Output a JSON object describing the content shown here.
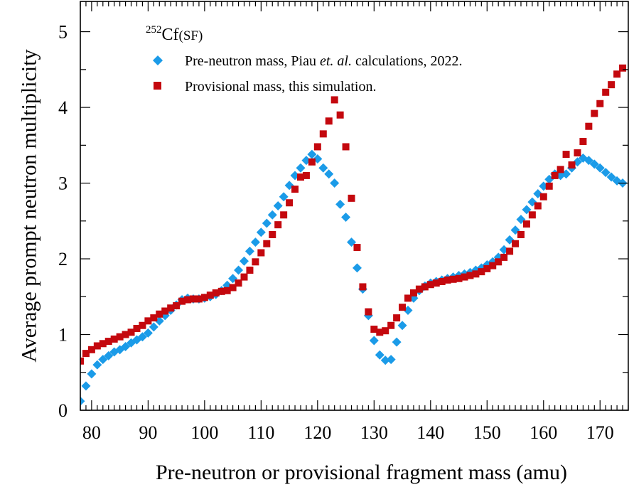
{
  "chart_data": {
    "type": "scatter",
    "title": "",
    "xlabel": "Pre-neutron or provisional fragment mass (amu)",
    "ylabel": "Average prompt neutron multiplicity",
    "xlim": [
      78,
      175
    ],
    "ylim": [
      0,
      5.4
    ],
    "xticks": [
      "80",
      "90",
      "100",
      "110",
      "120",
      "130",
      "140",
      "150",
      "160",
      "170"
    ],
    "yticks": [
      "0",
      "1",
      "2",
      "3",
      "4",
      "5"
    ],
    "legend": {
      "title_sup": "252",
      "title_main": "Cf",
      "title_sub": "(SF)",
      "placement": "top-left",
      "entries": [
        {
          "prefix": "Pre-neutron mass, Piau ",
          "italic": "et. al.",
          "suffix": " calculations, 2022."
        },
        {
          "prefix": "Provisional mass, this simulation.",
          "italic": "",
          "suffix": ""
        }
      ]
    },
    "series": [
      {
        "name": "Pre-neutron mass, Piau et. al. calculations, 2022.",
        "marker": "diamond",
        "color": "#1b9be8",
        "x": [
          78,
          79,
          80,
          81,
          82,
          83,
          84,
          85,
          86,
          87,
          88,
          89,
          90,
          91,
          92,
          93,
          94,
          95,
          96,
          97,
          98,
          99,
          100,
          101,
          102,
          103,
          104,
          105,
          106,
          107,
          108,
          109,
          110,
          111,
          112,
          113,
          114,
          115,
          116,
          117,
          118,
          119,
          120,
          121,
          122,
          123,
          124,
          125,
          126,
          127,
          128,
          129,
          130,
          131,
          132,
          133,
          134,
          135,
          136,
          137,
          138,
          139,
          140,
          141,
          142,
          143,
          144,
          145,
          146,
          147,
          148,
          149,
          150,
          151,
          152,
          153,
          154,
          155,
          156,
          157,
          158,
          159,
          160,
          161,
          162,
          163,
          164,
          165,
          166,
          167,
          168,
          169,
          170,
          171,
          172,
          173,
          174
        ],
        "y": [
          0.12,
          0.32,
          0.48,
          0.6,
          0.67,
          0.72,
          0.77,
          0.8,
          0.84,
          0.89,
          0.93,
          0.97,
          1.02,
          1.1,
          1.18,
          1.25,
          1.32,
          1.39,
          1.46,
          1.48,
          1.47,
          1.47,
          1.48,
          1.5,
          1.53,
          1.58,
          1.65,
          1.74,
          1.85,
          1.97,
          2.1,
          2.22,
          2.35,
          2.47,
          2.58,
          2.7,
          2.82,
          2.97,
          3.1,
          3.2,
          3.3,
          3.38,
          3.32,
          3.2,
          3.12,
          3.0,
          2.72,
          2.55,
          2.22,
          1.88,
          1.6,
          1.25,
          0.92,
          0.73,
          0.66,
          0.67,
          0.9,
          1.12,
          1.32,
          1.48,
          1.58,
          1.64,
          1.68,
          1.7,
          1.72,
          1.74,
          1.76,
          1.78,
          1.8,
          1.82,
          1.85,
          1.88,
          1.92,
          1.96,
          2.02,
          2.12,
          2.25,
          2.38,
          2.52,
          2.65,
          2.75,
          2.86,
          2.96,
          3.05,
          3.12,
          3.1,
          3.12,
          3.2,
          3.28,
          3.33,
          3.3,
          3.25,
          3.2,
          3.14,
          3.08,
          3.03,
          3.0
        ]
      },
      {
        "name": "Provisional mass, this simulation.",
        "marker": "square",
        "color": "#c4080e",
        "x": [
          78,
          79,
          80,
          81,
          82,
          83,
          84,
          85,
          86,
          87,
          88,
          89,
          90,
          91,
          92,
          93,
          94,
          95,
          96,
          97,
          98,
          99,
          100,
          101,
          102,
          103,
          104,
          105,
          106,
          107,
          108,
          109,
          110,
          111,
          112,
          113,
          114,
          115,
          116,
          117,
          118,
          119,
          120,
          121,
          122,
          123,
          124,
          125,
          126,
          127,
          128,
          129,
          130,
          131,
          132,
          133,
          134,
          135,
          136,
          137,
          138,
          139,
          140,
          141,
          142,
          143,
          144,
          145,
          146,
          147,
          148,
          149,
          150,
          151,
          152,
          153,
          154,
          155,
          156,
          157,
          158,
          159,
          160,
          161,
          162,
          163,
          164,
          165,
          166,
          167,
          168,
          169,
          170,
          171,
          172,
          173,
          174
        ],
        "y": [
          0.65,
          0.75,
          0.8,
          0.85,
          0.88,
          0.91,
          0.94,
          0.97,
          1.0,
          1.03,
          1.08,
          1.12,
          1.18,
          1.22,
          1.27,
          1.31,
          1.35,
          1.38,
          1.44,
          1.46,
          1.47,
          1.47,
          1.49,
          1.52,
          1.55,
          1.57,
          1.58,
          1.62,
          1.68,
          1.76,
          1.85,
          1.96,
          2.08,
          2.2,
          2.32,
          2.45,
          2.58,
          2.74,
          2.92,
          3.08,
          3.1,
          3.28,
          3.48,
          3.65,
          3.82,
          4.1,
          3.9,
          3.48,
          2.8,
          2.15,
          1.63,
          1.3,
          1.07,
          1.03,
          1.05,
          1.12,
          1.22,
          1.36,
          1.48,
          1.55,
          1.6,
          1.63,
          1.66,
          1.68,
          1.7,
          1.72,
          1.73,
          1.74,
          1.76,
          1.78,
          1.8,
          1.83,
          1.87,
          1.91,
          1.96,
          2.02,
          2.1,
          2.2,
          2.32,
          2.46,
          2.58,
          2.7,
          2.82,
          2.96,
          3.1,
          3.18,
          3.38,
          3.24,
          3.4,
          3.55,
          3.75,
          3.92,
          4.05,
          4.2,
          4.3,
          4.44,
          4.52
        ]
      }
    ]
  }
}
